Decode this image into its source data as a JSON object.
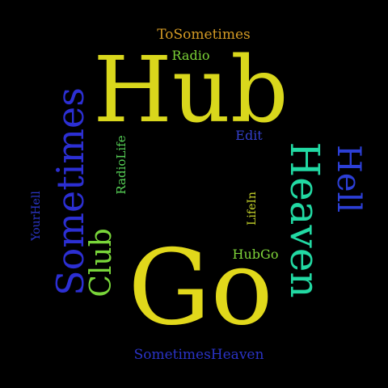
{
  "word_cloud": {
    "background": "#000000",
    "words": [
      {
        "id": "hub",
        "text": "Hub",
        "color": "#d9d71c"
      },
      {
        "id": "go",
        "text": "Go",
        "color": "#e1d81b"
      },
      {
        "id": "heaven",
        "text": "Heaven",
        "color": "#22d9a3"
      },
      {
        "id": "sometimes",
        "text": "Sometimes",
        "color": "#2c2fd3"
      },
      {
        "id": "hell",
        "text": "Hell",
        "color": "#2c3fd6"
      },
      {
        "id": "club",
        "text": "Club",
        "color": "#79d63a"
      },
      {
        "id": "to_sometimes",
        "text": "ToSometimes",
        "color": "#d39a24"
      },
      {
        "id": "radio",
        "text": "Radio",
        "color": "#7bd236"
      },
      {
        "id": "edit",
        "text": "Edit",
        "color": "#3440cc"
      },
      {
        "id": "radio_life",
        "text": "RadioLife",
        "color": "#55cf55"
      },
      {
        "id": "your_hell",
        "text": "YourHell",
        "color": "#2b36c8"
      },
      {
        "id": "life_in",
        "text": "LifeIn",
        "color": "#c6d42a"
      },
      {
        "id": "hub_go",
        "text": "HubGo",
        "color": "#7fd43a"
      },
      {
        "id": "sometimes_heaven",
        "text": "SometimesHeaven",
        "color": "#2a33c6"
      }
    ]
  }
}
